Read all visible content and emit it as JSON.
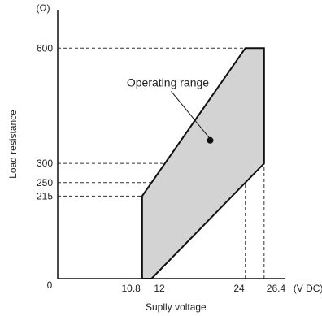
{
  "chart_data": {
    "type": "area",
    "title": "",
    "xlabel": "Suplly voltage",
    "ylabel": "Load resistance",
    "x_unit": "(V DC)",
    "y_unit": "(Ω)",
    "origin_label": "0",
    "xlim": [
      0,
      28.5
    ],
    "ylim": [
      0,
      700
    ],
    "x_ticks": [
      {
        "value": 10.8,
        "label": "10.8"
      },
      {
        "value": 12,
        "label": "12"
      },
      {
        "value": 24,
        "label": "24"
      },
      {
        "value": 26.4,
        "label": "26.4"
      }
    ],
    "y_ticks": [
      {
        "value": 215,
        "label": "215"
      },
      {
        "value": 250,
        "label": "250"
      },
      {
        "value": 300,
        "label": "300"
      },
      {
        "value": 600,
        "label": "600"
      }
    ],
    "region": {
      "name": "Operating range",
      "fill_color": "#d3d3d3",
      "points": [
        [
          10.8,
          0
        ],
        [
          12,
          0
        ],
        [
          26.4,
          300
        ],
        [
          26.4,
          600
        ],
        [
          24,
          600
        ],
        [
          10.8,
          215
        ]
      ]
    },
    "annotation": {
      "text": "Operating range",
      "point": [
        19.5,
        360
      ]
    },
    "guides": [
      {
        "y": 600,
        "x_to": 26.4
      },
      {
        "y": 300,
        "x_to": 26.4
      },
      {
        "y": 250,
        "x_to": 24
      },
      {
        "y": 215,
        "x_to": 10.8
      },
      {
        "x": 24,
        "y_to": 600
      },
      {
        "x": 26.4,
        "y_to": 600
      }
    ],
    "grid": false,
    "legend": "none"
  }
}
